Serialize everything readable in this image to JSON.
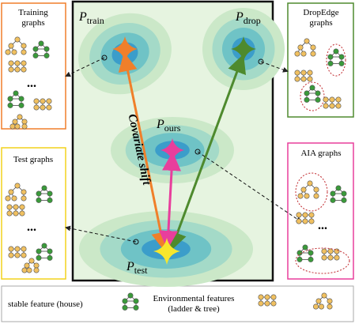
{
  "panels": [
    {
      "title": "Training graphs"
    },
    {
      "title": "Test graphs"
    },
    {
      "title": "DropEdge graphs"
    },
    {
      "title": "AIA graphs"
    }
  ],
  "distributions": [
    {
      "symbol": "P",
      "subscript": "train"
    },
    {
      "symbol": "P",
      "subscript": "drop"
    },
    {
      "symbol": "P",
      "subscript": "ours"
    },
    {
      "symbol": "P",
      "subscript": "test"
    }
  ],
  "annotation": "Covariate shift",
  "ellipsis": "...",
  "legend": {
    "stable": "stable feature (house)",
    "environmental": "Environmental features (ladder & tree)"
  }
}
